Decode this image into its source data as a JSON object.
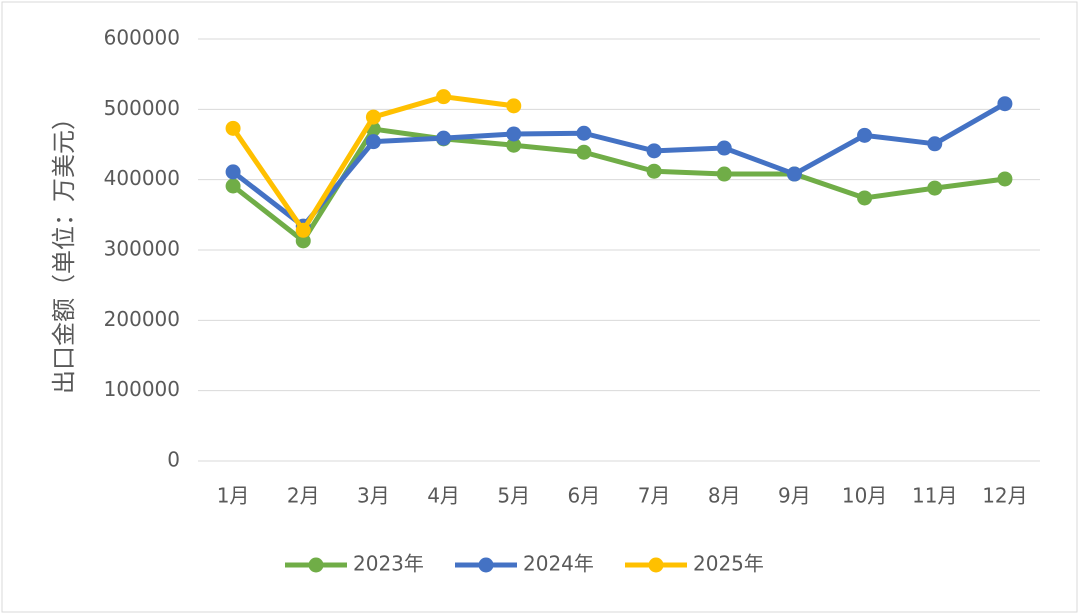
{
  "chart_data": {
    "type": "line",
    "y_label": "出口金额（单位：万美元）",
    "categories": [
      "1月",
      "2月",
      "3月",
      "4月",
      "5月",
      "6月",
      "7月",
      "8月",
      "9月",
      "10月",
      "11月",
      "12月"
    ],
    "series": [
      {
        "name": "2023年",
        "color": "#70ad47",
        "values": [
          391000,
          313000,
          472000,
          458000,
          449000,
          439000,
          412000,
          408000,
          408000,
          374000,
          388000,
          401000
        ]
      },
      {
        "name": "2024年",
        "color": "#4472c4",
        "values": [
          411000,
          334000,
          454000,
          459000,
          465000,
          466000,
          441000,
          445000,
          408000,
          463000,
          451000,
          508000
        ]
      },
      {
        "name": "2025年",
        "color": "#ffc000",
        "values": [
          473000,
          328000,
          489000,
          518000,
          505000,
          null,
          null,
          null,
          null,
          null,
          null,
          null
        ]
      }
    ],
    "ylim": [
      0,
      600000
    ],
    "yticks": [
      0,
      100000,
      200000,
      300000,
      400000,
      500000,
      600000
    ],
    "grid": true,
    "legend": "bottom"
  }
}
